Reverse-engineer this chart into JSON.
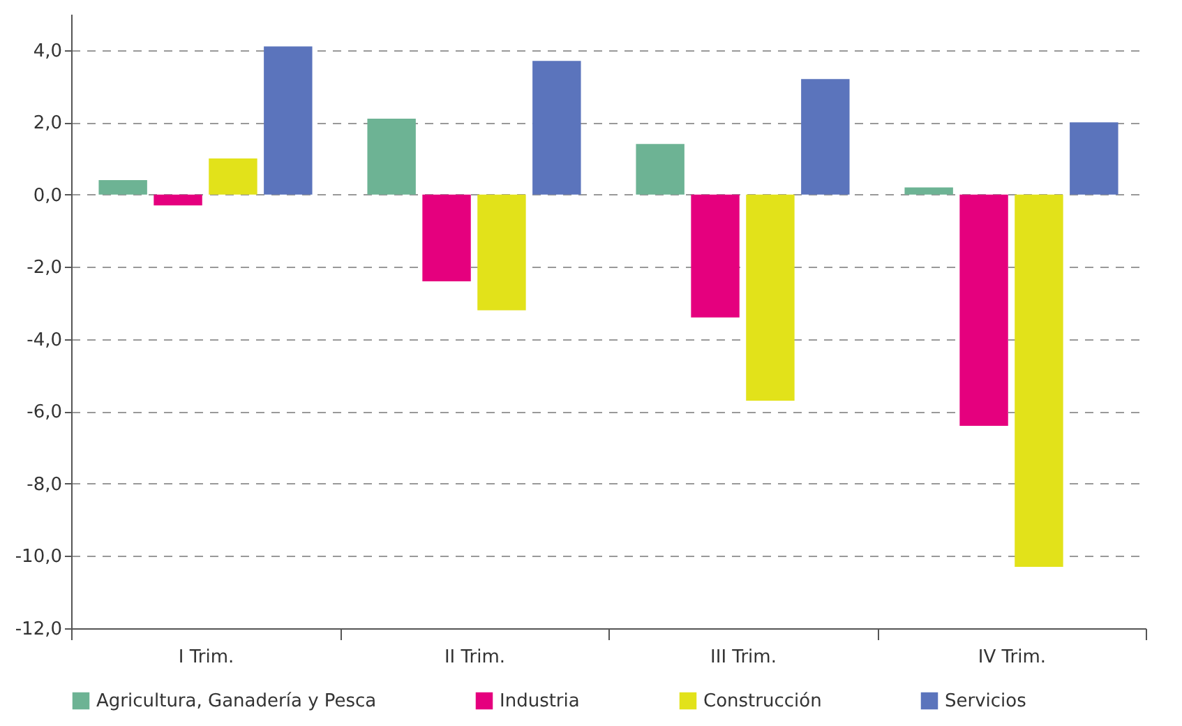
{
  "chart_data": {
    "type": "bar",
    "categories": [
      "I Trim.",
      "II Trim.",
      "III Trim.",
      "IV Trim."
    ],
    "series": [
      {
        "name": "Agricultura, Ganadería y Pesca",
        "color": "#6db394",
        "values": [
          0.4,
          2.1,
          1.4,
          0.2
        ]
      },
      {
        "name": "Industria",
        "color": "#e5007e",
        "values": [
          -0.3,
          -2.4,
          -3.4,
          -6.4
        ]
      },
      {
        "name": "Construcción",
        "color": "#e2e21a",
        "values": [
          1.0,
          -3.2,
          -5.7,
          -10.3
        ]
      },
      {
        "name": "Servicios",
        "color": "#5b74bc",
        "values": [
          4.1,
          3.7,
          3.2,
          2.0
        ]
      }
    ],
    "ylim": [
      -12,
      5
    ],
    "yticks": [
      {
        "value": 4,
        "label": "4,0"
      },
      {
        "value": 2,
        "label": "2,0"
      },
      {
        "value": 0,
        "label": "0,0"
      },
      {
        "value": -2,
        "label": "-2,0"
      },
      {
        "value": -4,
        "label": "-4,0"
      },
      {
        "value": -6,
        "label": "-6,0"
      },
      {
        "value": -8,
        "label": "-8,0"
      },
      {
        "value": -10,
        "label": "-10,0"
      },
      {
        "value": -12,
        "label": "-12,0"
      }
    ],
    "grid": "y",
    "legend": "bottom"
  }
}
